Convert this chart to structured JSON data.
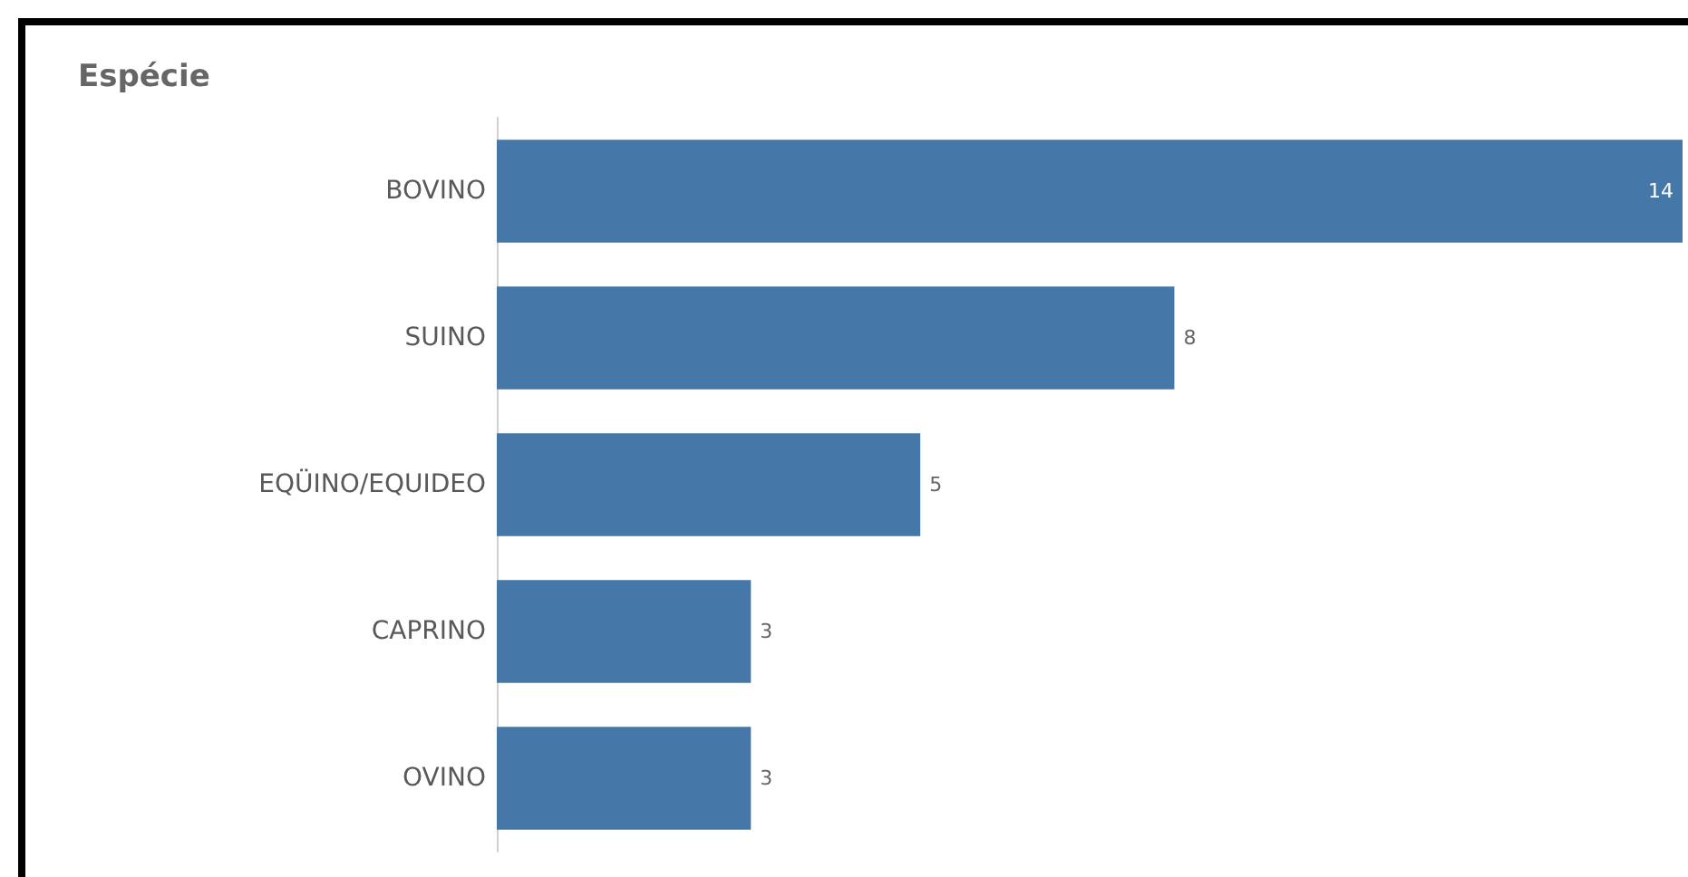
{
  "chart_data": {
    "type": "bar",
    "orientation": "horizontal",
    "title": "Espécie",
    "categories": [
      "BOVINO",
      "SUINO",
      "EQÜINO/EQUIDEO",
      "CAPRINO",
      "OVINO"
    ],
    "values": [
      14,
      8,
      5,
      3,
      3
    ],
    "color": "#4577a9",
    "data_labels": true
  }
}
